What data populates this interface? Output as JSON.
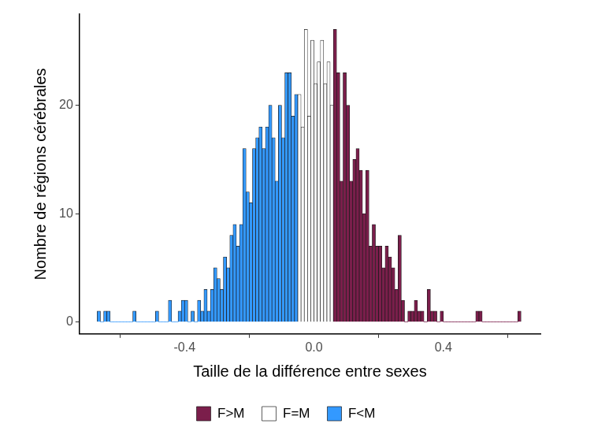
{
  "chart_data": {
    "type": "histogram",
    "x_label": "Taille de la différence entre sexes",
    "y_label": "Nombre de régions cérébrales",
    "series": [
      {
        "name": "F>M",
        "color": "#7b1e4b",
        "bins": [
          0.06,
          0.07,
          0.08,
          0.09,
          0.1,
          0.11,
          0.12,
          0.13,
          0.14,
          0.15,
          0.16,
          0.17,
          0.18,
          0.19,
          0.2,
          0.21,
          0.22,
          0.23,
          0.24,
          0.25,
          0.26,
          0.27,
          0.28,
          0.29,
          0.3,
          0.31,
          0.32,
          0.33,
          0.34,
          0.35,
          0.36,
          0.37,
          0.38,
          0.39,
          0.4,
          0.41,
          0.42,
          0.43,
          0.44,
          0.45,
          0.46,
          0.47,
          0.48,
          0.49,
          0.5,
          0.51,
          0.52,
          0.53,
          0.54,
          0.55,
          0.56,
          0.57,
          0.58,
          0.59,
          0.6,
          0.61,
          0.62,
          0.63,
          0.64
        ],
        "values": [
          27,
          23,
          13,
          23,
          20,
          13,
          15,
          16,
          14,
          10,
          14,
          7,
          9,
          7,
          7,
          5,
          7,
          6,
          5,
          3,
          8,
          2,
          0,
          1,
          1,
          2,
          1,
          1,
          0,
          3,
          1,
          1,
          0,
          1,
          0,
          0,
          0,
          0,
          0,
          0,
          0,
          0,
          0,
          0,
          1,
          1,
          0,
          0,
          0,
          0,
          0,
          0,
          0,
          0,
          0,
          0,
          0,
          1
        ]
      },
      {
        "name": "F=M",
        "color": "#ffffff",
        "bins": [
          -0.05,
          -0.04,
          -0.03,
          -0.02,
          -0.01,
          0,
          0.01,
          0.02,
          0.03,
          0.04,
          0.05,
          0.06
        ],
        "values": [
          21,
          18,
          27,
          19,
          26,
          22,
          24,
          26,
          22,
          24,
          20
        ]
      },
      {
        "name": "F<M",
        "color": "#3399ff",
        "bins": [
          -0.67,
          -0.66,
          -0.65,
          -0.64,
          -0.63,
          -0.62,
          -0.61,
          -0.6,
          -0.59,
          -0.58,
          -0.57,
          -0.56,
          -0.55,
          -0.54,
          -0.53,
          -0.52,
          -0.51,
          -0.5,
          -0.49,
          -0.48,
          -0.47,
          -0.46,
          -0.45,
          -0.44,
          -0.43,
          -0.42,
          -0.41,
          -0.4,
          -0.39,
          -0.38,
          -0.37,
          -0.36,
          -0.35,
          -0.34,
          -0.33,
          -0.32,
          -0.31,
          -0.3,
          -0.29,
          -0.28,
          -0.27,
          -0.26,
          -0.25,
          -0.24,
          -0.23,
          -0.22,
          -0.21,
          -0.2,
          -0.19,
          -0.18,
          -0.17,
          -0.16,
          -0.15,
          -0.14,
          -0.13,
          -0.12,
          -0.11,
          -0.1,
          -0.09,
          -0.08,
          -0.07,
          -0.06,
          -0.05
        ],
        "values": [
          1,
          0,
          1,
          1,
          0,
          0,
          0,
          0,
          0,
          0,
          0,
          1,
          0,
          0,
          0,
          0,
          0,
          0,
          1,
          0,
          0,
          0,
          2,
          0,
          0,
          1,
          2,
          2,
          0,
          1,
          0,
          2,
          1,
          3,
          1,
          3,
          5,
          4,
          3,
          6,
          5,
          8,
          9,
          7,
          9,
          16,
          12,
          11,
          16,
          17,
          18,
          16,
          18,
          20,
          17,
          13,
          20,
          17,
          23,
          23,
          19,
          21
        ]
      }
    ],
    "xlim": [
      -0.725,
      0.7
    ],
    "xticks": [
      -0.4,
      {
        "value": 0,
        "label": "0.0"
      },
      0.4
    ],
    "ylim": [
      -1.1,
      28.4
    ],
    "yticks": [
      0,
      10,
      20
    ],
    "grid": false,
    "legend": "bottom"
  }
}
